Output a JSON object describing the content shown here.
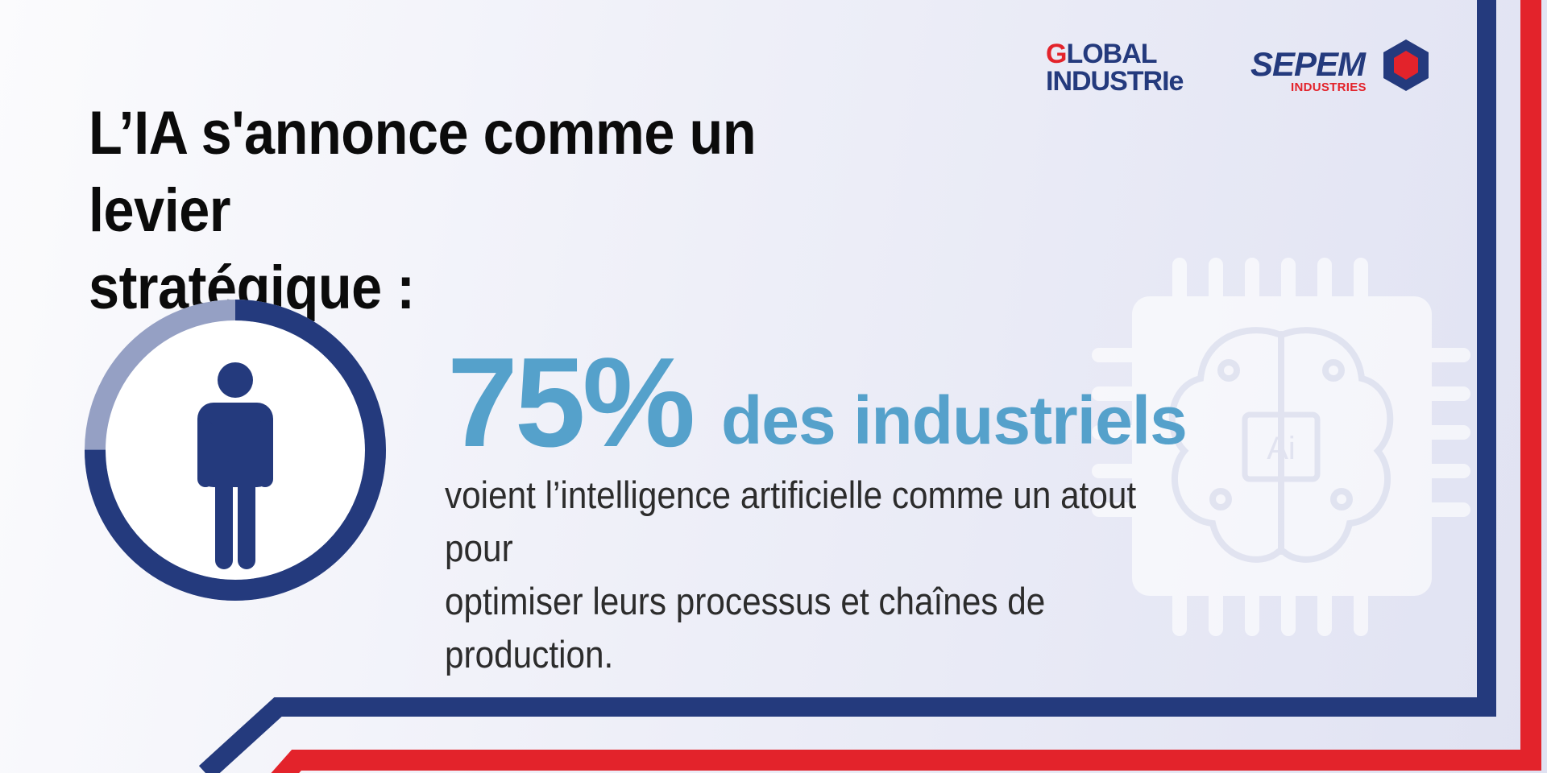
{
  "headline": {
    "line1": "L’IA s'annonce comme un levier",
    "line2": "stratégique :"
  },
  "logos": {
    "global_industrie": {
      "line1_mark": "G",
      "line1_rest": "LOBAL",
      "line2": "INDUSTRIe"
    },
    "sepem": {
      "word": "SEPEM",
      "sub": "INDUSTRIES"
    }
  },
  "stat": {
    "value": "75%",
    "label": "des industriels",
    "description_line1": "voient l’intelligence artificielle comme un atout pour",
    "description_line2": "optimiser leurs processus et chaînes de production.",
    "ring_fraction": 0.75
  },
  "background_chip": {
    "label": "Ai"
  },
  "colors": {
    "navy": "#243a7d",
    "red": "#e3232b",
    "accent_blue": "#55a1cb",
    "ring_remainder": "#95a0c4"
  },
  "icons": [
    "person-icon",
    "ai-chip-icon"
  ]
}
